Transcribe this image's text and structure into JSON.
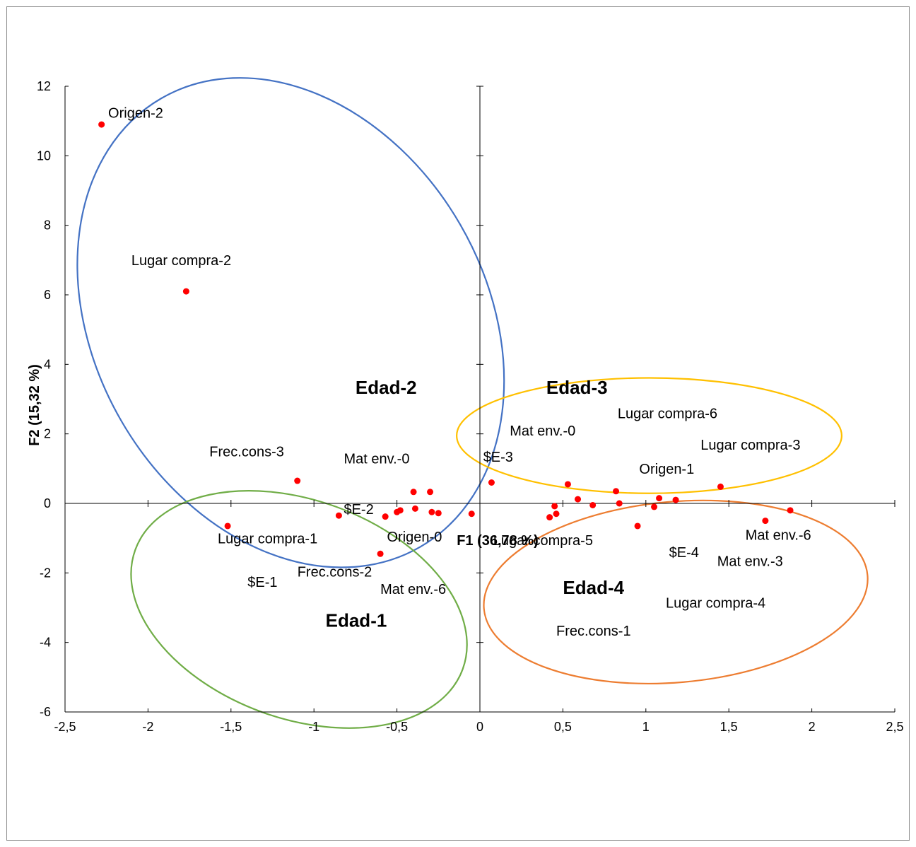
{
  "chart_data": {
    "type": "scatter",
    "xlabel": "F1 (36,78 %)",
    "ylabel": "F2 (15,32 %)",
    "xlim": [
      -2.5,
      2.5
    ],
    "ylim": [
      -6,
      12
    ],
    "x_ticks": [
      -2.5,
      -2,
      -1.5,
      -1,
      -0.5,
      0,
      0.5,
      1,
      1.5,
      2,
      2.5
    ],
    "y_ticks": [
      -6,
      -4,
      -2,
      0,
      2,
      4,
      6,
      8,
      10,
      12
    ],
    "x_tick_labels": [
      "-2,5",
      "-2",
      "-1,5",
      "-1",
      "-0,5",
      "0",
      "0,5",
      "1",
      "1,5",
      "2",
      "2,5"
    ],
    "y_tick_labels": [
      "-6",
      "-4",
      "-2",
      "0",
      "2",
      "4",
      "6",
      "8",
      "10",
      "12"
    ],
    "grid": false,
    "marker_color": "#ff0000",
    "points": [
      {
        "x": -2.28,
        "y": 10.9
      },
      {
        "x": -1.77,
        "y": 6.1
      },
      {
        "x": -1.1,
        "y": 0.65
      },
      {
        "x": -1.52,
        "y": -0.65
      },
      {
        "x": -0.85,
        "y": -0.35
      },
      {
        "x": -0.57,
        "y": -0.38
      },
      {
        "x": -0.5,
        "y": -0.25
      },
      {
        "x": -0.48,
        "y": -0.2
      },
      {
        "x": -0.4,
        "y": 0.33
      },
      {
        "x": -0.39,
        "y": -0.15
      },
      {
        "x": -0.3,
        "y": 0.33
      },
      {
        "x": -0.29,
        "y": -0.25
      },
      {
        "x": -0.25,
        "y": -0.28
      },
      {
        "x": -0.6,
        "y": -1.45
      },
      {
        "x": -0.05,
        "y": -0.3
      },
      {
        "x": 0.07,
        "y": 0.6
      },
      {
        "x": 0.42,
        "y": -0.4
      },
      {
        "x": 0.45,
        "y": -0.08
      },
      {
        "x": 0.46,
        "y": -0.3
      },
      {
        "x": 0.53,
        "y": 0.55
      },
      {
        "x": 0.59,
        "y": 0.12
      },
      {
        "x": 0.68,
        "y": -0.05
      },
      {
        "x": 0.82,
        "y": 0.35
      },
      {
        "x": 0.84,
        "y": 0.0
      },
      {
        "x": 0.95,
        "y": -0.65
      },
      {
        "x": 1.05,
        "y": -0.1
      },
      {
        "x": 1.08,
        "y": 0.15
      },
      {
        "x": 1.18,
        "y": 0.1
      },
      {
        "x": 1.45,
        "y": 0.48
      },
      {
        "x": 1.72,
        "y": -0.5
      },
      {
        "x": 1.87,
        "y": -0.2
      }
    ],
    "point_labels": [
      {
        "text": "Origen-2",
        "x": -2.24,
        "y": 11.1
      },
      {
        "text": "Lugar compra-2",
        "x": -2.1,
        "y": 6.85
      },
      {
        "text": "Frec.cons-3",
        "x": -1.63,
        "y": 1.35
      },
      {
        "text": "Mat env.-0",
        "x": -0.82,
        "y": 1.15
      },
      {
        "text": "$E-2",
        "x": -0.82,
        "y": -0.3
      },
      {
        "text": "Lugar compra-1",
        "x": -1.58,
        "y": -1.15
      },
      {
        "text": "Origen-0",
        "x": -0.56,
        "y": -1.1
      },
      {
        "text": "$E-1",
        "x": -1.4,
        "y": -2.4
      },
      {
        "text": "Frec.cons-2",
        "x": -1.1,
        "y": -2.1
      },
      {
        "text": "Mat env.-6",
        "x": -0.6,
        "y": -2.6
      },
      {
        "text": "$E-3",
        "x": 0.02,
        "y": 1.2
      },
      {
        "text": "Mat env.-0",
        "x": 0.18,
        "y": 1.95
      },
      {
        "text": "Lugar compra-6",
        "x": 0.83,
        "y": 2.45
      },
      {
        "text": "Lugar compra-3",
        "x": 1.33,
        "y": 1.55
      },
      {
        "text": "Origen-1",
        "x": 0.96,
        "y": 0.85
      },
      {
        "text": "Lugar compra-5",
        "x": 0.08,
        "y": -1.2
      },
      {
        "text": "Mat env.-6",
        "x": 1.6,
        "y": -1.05
      },
      {
        "text": "$E-4",
        "x": 1.14,
        "y": -1.55
      },
      {
        "text": "Mat env.-3",
        "x": 1.43,
        "y": -1.8
      },
      {
        "text": "Lugar compra-4",
        "x": 1.12,
        "y": -3.0
      },
      {
        "text": "Frec.cons-1",
        "x": 0.46,
        "y": -3.8
      }
    ],
    "groups": [
      {
        "label": "Edad-2",
        "label_x": -0.75,
        "label_y": 3.15,
        "color": "#4472c4",
        "cx": -1.14,
        "cy": 5.2,
        "rx": 1.18,
        "ry": 7.45,
        "angle_deg": 30
      },
      {
        "label": "Edad-3",
        "label_x": 0.4,
        "label_y": 3.15,
        "color": "#ffc000",
        "cx": 1.02,
        "cy": 1.95,
        "rx": 1.16,
        "ry": 1.66,
        "angle_deg": 0
      },
      {
        "label": "Edad-1",
        "label_x": -0.93,
        "label_y": -3.55,
        "color": "#70ad47",
        "cx": -1.09,
        "cy": -3.05,
        "rx": 1.05,
        "ry": 3.14,
        "angle_deg": -20
      },
      {
        "label": "Edad-4",
        "label_x": 0.5,
        "label_y": -2.6,
        "color": "#ed7d31",
        "cx": 1.18,
        "cy": -2.55,
        "rx": 1.16,
        "ry": 2.6,
        "angle_deg": 5
      }
    ]
  }
}
